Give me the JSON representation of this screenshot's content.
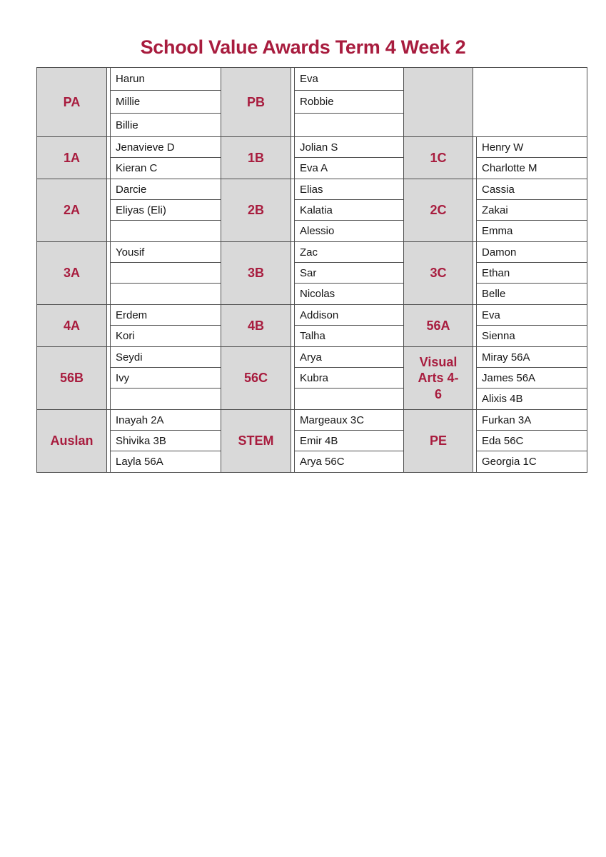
{
  "title": "School Value Awards Term 4 Week 2",
  "colors": {
    "accent": "#a81c3e",
    "cell_fill": "#d9d9d9",
    "border": "#4f4f4f",
    "name_text": "#141414"
  },
  "table": {
    "rows": [
      {
        "groups": [
          {
            "label": "PA",
            "names": [
              "Harun",
              "Millie",
              "Billie"
            ]
          },
          {
            "label": "PB",
            "names": [
              "Eva",
              "Robbie",
              ""
            ]
          },
          {
            "label": "",
            "names": [
              ""
            ]
          }
        ]
      },
      {
        "groups": [
          {
            "label": "1A",
            "names": [
              "Jenavieve D",
              "Kieran C"
            ]
          },
          {
            "label": "1B",
            "names": [
              "Jolian S",
              "Eva A"
            ]
          },
          {
            "label": "1C",
            "names": [
              "Henry W",
              "Charlotte M"
            ]
          }
        ]
      },
      {
        "groups": [
          {
            "label": "2A",
            "names": [
              "Darcie",
              "Eliyas (Eli)",
              ""
            ]
          },
          {
            "label": "2B",
            "names": [
              "Elias",
              "Kalatia",
              "Alessio"
            ]
          },
          {
            "label": "2C",
            "names": [
              "Cassia",
              "Zakai",
              "Emma"
            ]
          }
        ]
      },
      {
        "groups": [
          {
            "label": "3A",
            "names": [
              "Yousif",
              "",
              ""
            ]
          },
          {
            "label": "3B",
            "names": [
              "Zac",
              "Sar",
              "Nicolas"
            ]
          },
          {
            "label": "3C",
            "names": [
              "Damon",
              "Ethan",
              "Belle"
            ]
          }
        ]
      },
      {
        "groups": [
          {
            "label": "4A",
            "names": [
              "Erdem",
              "Kori"
            ]
          },
          {
            "label": "4B",
            "names": [
              "Addison",
              "Talha"
            ]
          },
          {
            "label": "56A",
            "names": [
              "Eva",
              "Sienna"
            ]
          }
        ]
      },
      {
        "groups": [
          {
            "label": "56B",
            "names": [
              "Seydi",
              "Ivy",
              ""
            ]
          },
          {
            "label": "56C",
            "names": [
              "Arya",
              "Kubra",
              ""
            ]
          },
          {
            "label": "Visual Arts 4-6",
            "names": [
              "Miray 56A",
              "James 56A",
              "Alixis 4B"
            ]
          }
        ]
      },
      {
        "groups": [
          {
            "label": "Auslan",
            "names": [
              "Inayah 2A",
              "Shivika 3B",
              "Layla 56A"
            ]
          },
          {
            "label": "STEM",
            "names": [
              "Margeaux 3C",
              "Emir 4B",
              "Arya 56C"
            ]
          },
          {
            "label": "PE",
            "names": [
              "Furkan 3A",
              "Eda 56C",
              "Georgia 1C"
            ]
          }
        ]
      }
    ]
  }
}
